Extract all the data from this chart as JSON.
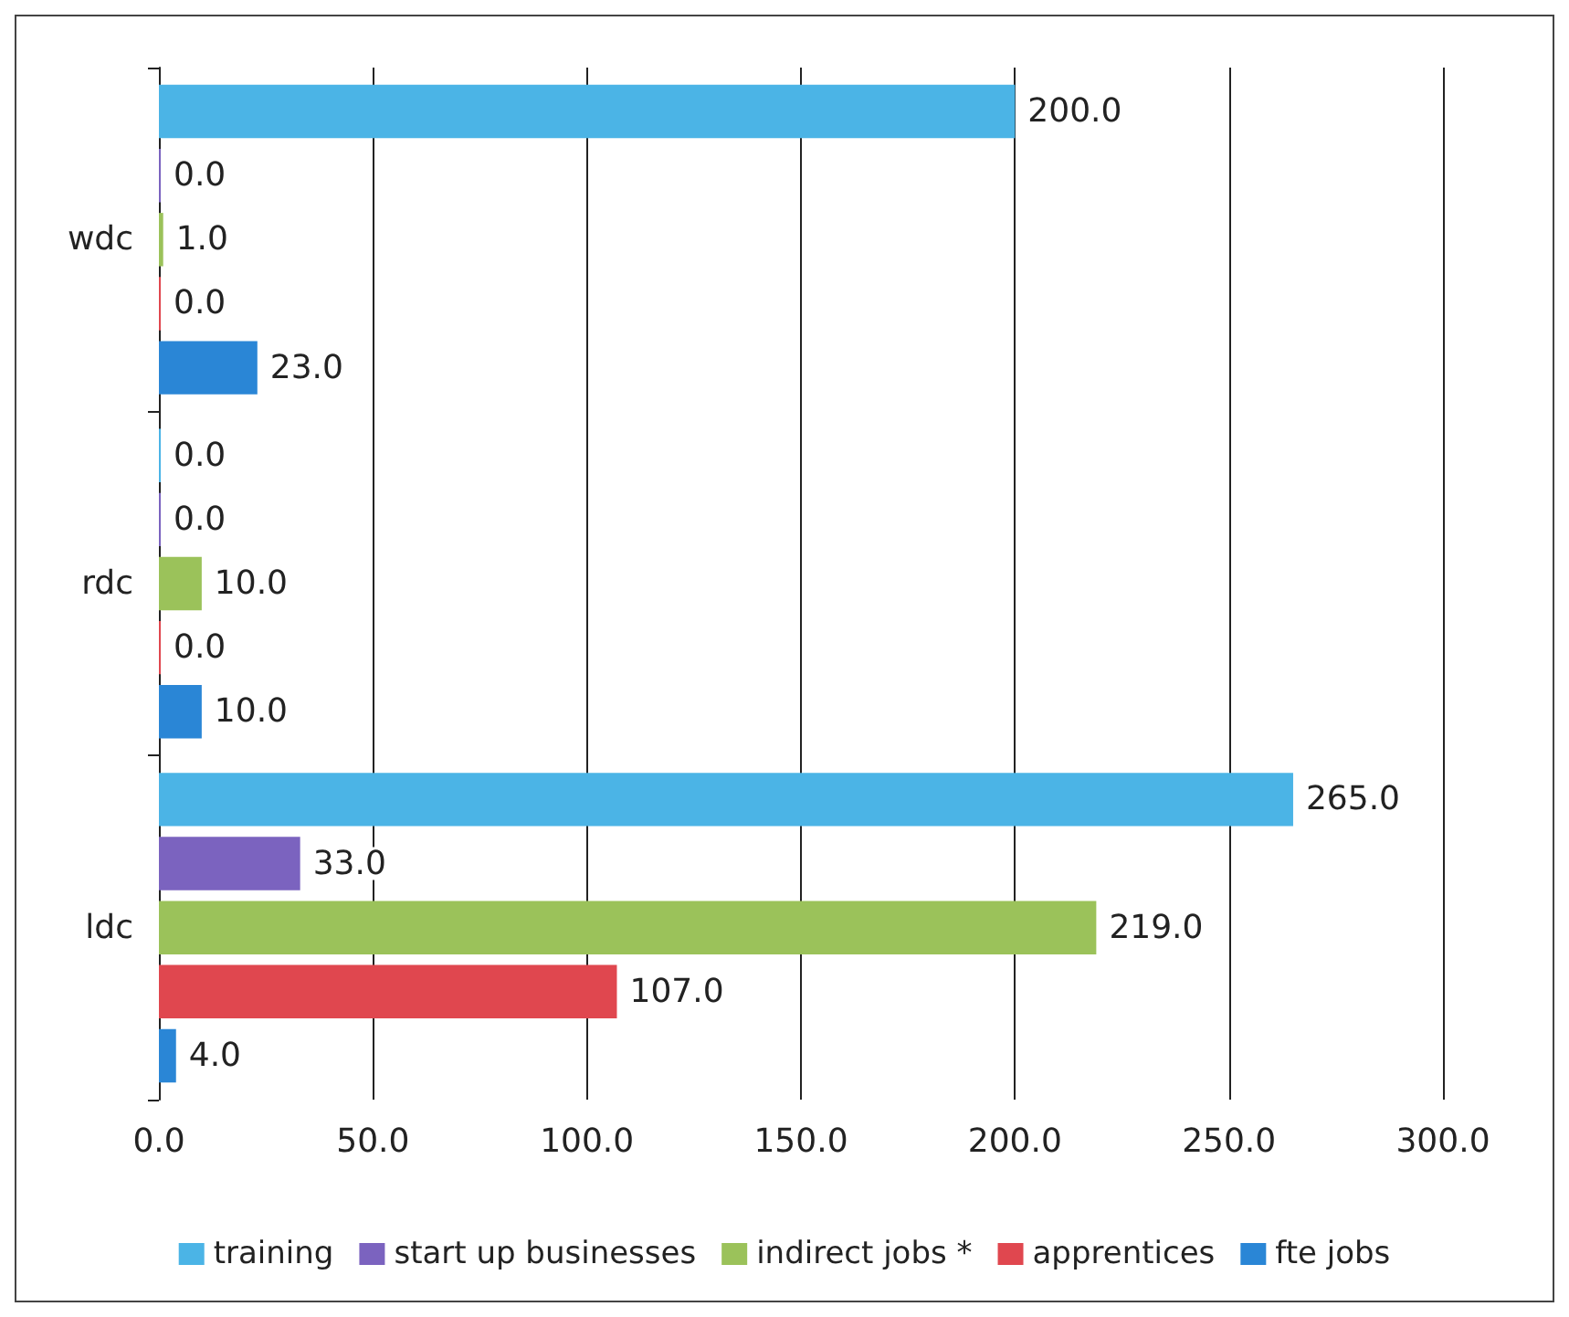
{
  "chart_data": {
    "type": "bar",
    "orientation": "horizontal",
    "categories": [
      "wdc",
      "rdc",
      "ldc"
    ],
    "series": [
      {
        "name": "training",
        "color": "#4bb4e6",
        "values": [
          200,
          0,
          265
        ],
        "value_labels": [
          "200.0",
          "0.0",
          "265.0"
        ]
      },
      {
        "name": "start up businesses",
        "color": "#7b63bf",
        "values": [
          0,
          0,
          33
        ],
        "value_labels": [
          "0.0",
          "0.0",
          "33.0"
        ]
      },
      {
        "name": "indirect jobs *",
        "color": "#9bc25a",
        "values": [
          1,
          10,
          219
        ],
        "value_labels": [
          "1.0",
          "10.0",
          "219.0"
        ]
      },
      {
        "name": "apprentices",
        "color": "#e0474f",
        "values": [
          0,
          0,
          107
        ],
        "value_labels": [
          "0.0",
          "0.0",
          "107.0"
        ]
      },
      {
        "name": "fte jobs",
        "color": "#2a86d6",
        "values": [
          23,
          10,
          4
        ],
        "value_labels": [
          "23.0",
          "10.0",
          "4.0"
        ]
      }
    ],
    "xlim": [
      0,
      300
    ],
    "xticks": [
      {
        "value": 0,
        "label": "0.0"
      },
      {
        "value": 50,
        "label": "50.0"
      },
      {
        "value": 100,
        "label": "100.0"
      },
      {
        "value": 150,
        "label": "150.0"
      },
      {
        "value": 200,
        "label": "200.0"
      },
      {
        "value": 250,
        "label": "250.0"
      },
      {
        "value": 300,
        "label": "300.0"
      }
    ],
    "grid": "x",
    "legend": "bottom"
  }
}
